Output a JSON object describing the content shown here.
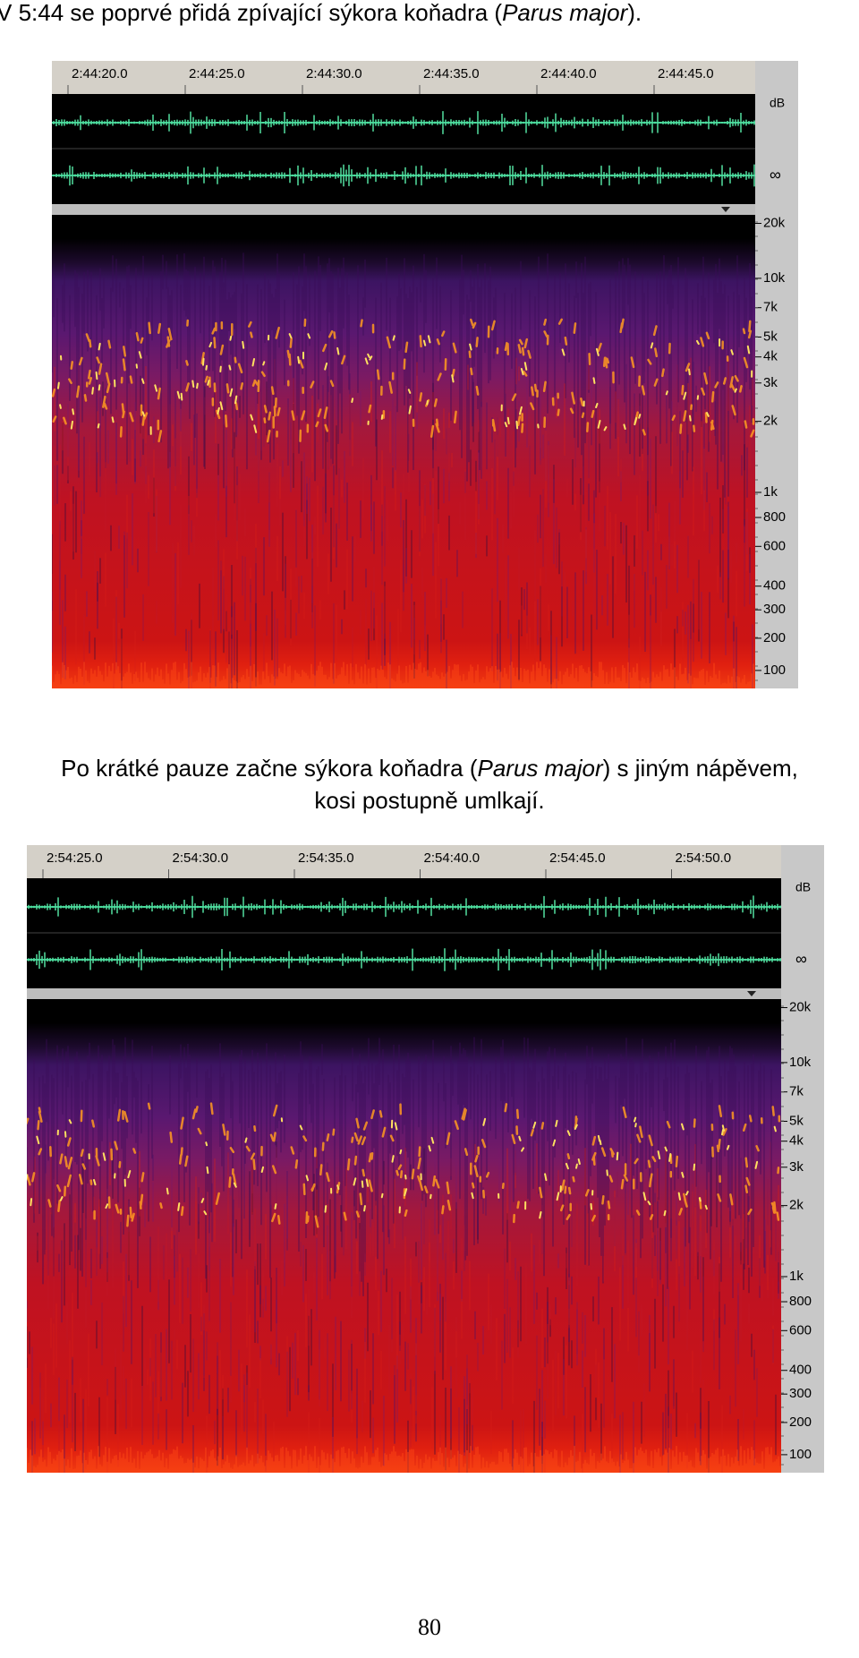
{
  "captions": [
    {
      "lines": [
        {
          "before": "V 5:44 se poprvé přidá zpívající sýkora koňadra (",
          "italic": "Parus major",
          "after": ")."
        }
      ]
    },
    {
      "lines": [
        {
          "before": "Po krátké pauze začne sýkora koňadra (",
          "italic": "Parus major",
          "after": ") s jiným nápěvem,"
        },
        {
          "text": "kosi postupně umlkají."
        }
      ]
    }
  ],
  "figures": [
    {
      "time_labels": [
        "2:44:20.0",
        "2:44:25.0",
        "2:44:30.0",
        "2:44:35.0",
        "2:44:40.0",
        "2:44:45.0"
      ],
      "db_label": "dB",
      "inf_label": "∞",
      "freq_labels": [
        "20k",
        "10k",
        "7k",
        "5k",
        "4k",
        "3k",
        "2k",
        "1k",
        "800",
        "600",
        "400",
        "300",
        "200",
        "100"
      ]
    },
    {
      "time_labels": [
        "2:54:25.0",
        "2:54:30.0",
        "2:54:35.0",
        "2:54:40.0",
        "2:54:45.0",
        "2:54:50.0"
      ],
      "db_label": "dB",
      "inf_label": "∞",
      "freq_labels": [
        "20k",
        "10k",
        "7k",
        "5k",
        "4k",
        "3k",
        "2k",
        "1k",
        "800",
        "600",
        "400",
        "300",
        "200",
        "100"
      ]
    }
  ],
  "page_number": "80"
}
